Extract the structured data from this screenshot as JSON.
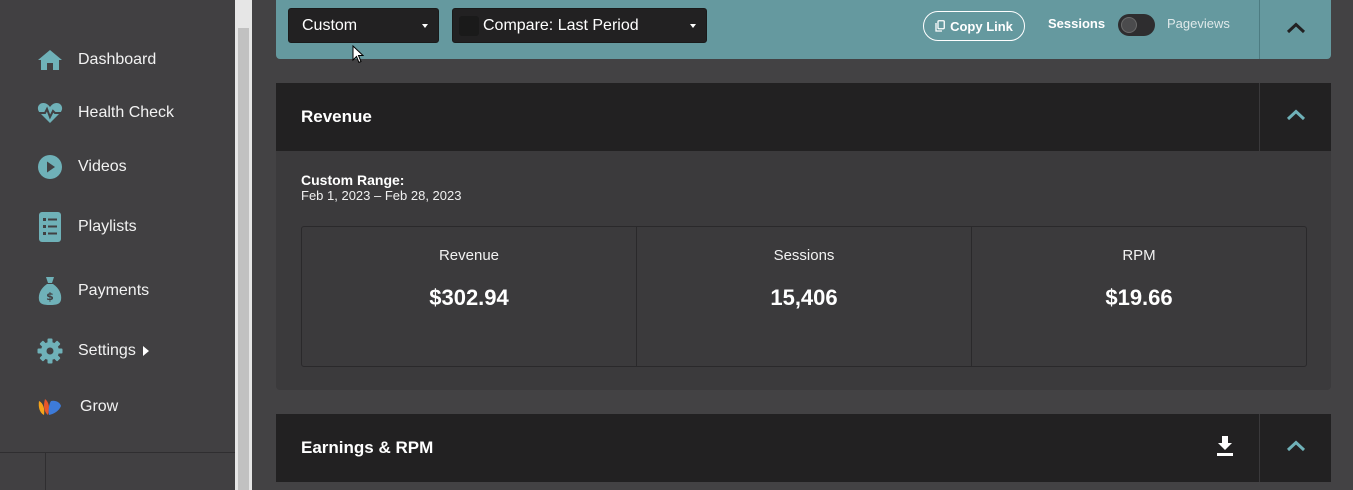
{
  "sidebar": {
    "items": [
      {
        "label": "Dashboard",
        "icon": "home-icon"
      },
      {
        "label": "Health Check",
        "icon": "heartbeat-icon"
      },
      {
        "label": "Videos",
        "icon": "play-icon"
      },
      {
        "label": "Playlists",
        "icon": "playlist-icon"
      },
      {
        "label": "Payments",
        "icon": "money-bag-icon"
      },
      {
        "label": "Settings",
        "icon": "gear-icon"
      },
      {
        "label": "Grow",
        "icon": "grow-logo-icon"
      }
    ]
  },
  "toolbar": {
    "range_select": "Custom",
    "compare_select": "Compare: Last Period",
    "copy_link": "Copy Link",
    "toggle_left": "Sessions",
    "toggle_right": "Pageviews"
  },
  "revenue_panel": {
    "title": "Revenue",
    "range_title": "Custom Range:",
    "range_dates": "Feb 1, 2023 – Feb 28, 2023",
    "stats": [
      {
        "label": "Revenue",
        "value": "$302.94"
      },
      {
        "label": "Sessions",
        "value": "15,406"
      },
      {
        "label": "RPM",
        "value": "$19.66"
      }
    ]
  },
  "earnings_panel": {
    "title": "Earnings & RPM"
  },
  "colors": {
    "toolbar": "#65999f",
    "panel_header": "#222122",
    "icon_teal": "#6fb1b8",
    "background": "#434244"
  }
}
